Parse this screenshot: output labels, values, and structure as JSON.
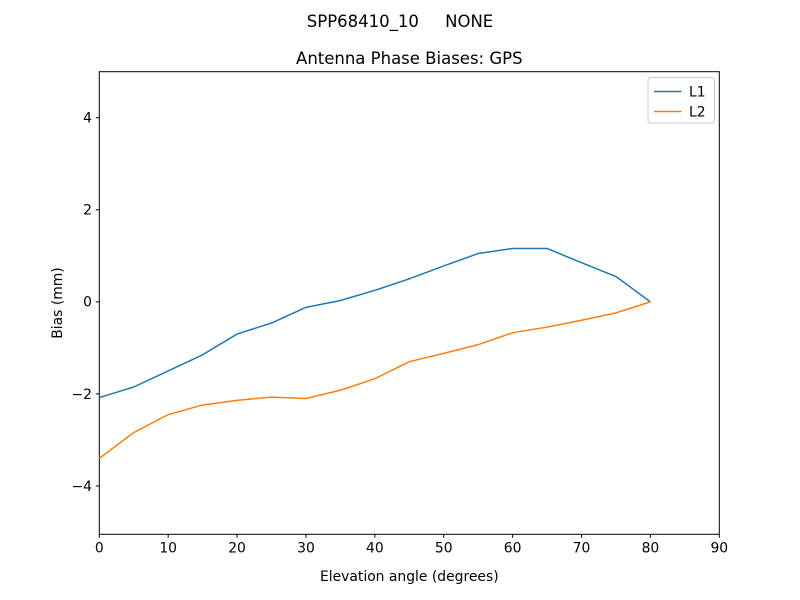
{
  "figure": {
    "background": "#ffffff",
    "text_color": "#000000",
    "spine_color": "#000000"
  },
  "chart_data": {
    "type": "line",
    "suptitle": "SPP68410_10     NONE",
    "title": "Antenna Phase Biases: GPS",
    "xlabel": "Elevation angle (degrees)",
    "ylabel": "Bias (mm)",
    "xlim": [
      0,
      90
    ],
    "ylim": [
      -5.05,
      5.0
    ],
    "xticks": [
      0,
      10,
      20,
      30,
      40,
      50,
      60,
      70,
      80,
      90
    ],
    "yticks": [
      -4,
      -2,
      0,
      2,
      4
    ],
    "grid": false,
    "x": [
      0,
      5,
      10,
      15,
      20,
      25,
      30,
      35,
      40,
      45,
      50,
      55,
      60,
      65,
      70,
      75,
      80
    ],
    "series": [
      {
        "name": "L1",
        "color": "#1f77b4",
        "values": [
          -2.08,
          -1.85,
          -1.5,
          -1.15,
          -0.7,
          -0.46,
          -0.12,
          0.03,
          0.25,
          0.5,
          0.78,
          1.05,
          1.16,
          1.16,
          0.85,
          0.55,
          0.0
        ]
      },
      {
        "name": "L2",
        "color": "#ff7f0e",
        "values": [
          -3.4,
          -2.84,
          -2.45,
          -2.24,
          -2.14,
          -2.07,
          -2.1,
          -1.92,
          -1.67,
          -1.3,
          -1.12,
          -0.93,
          -0.67,
          -0.55,
          -0.4,
          -0.24,
          0.0
        ]
      }
    ],
    "legend": {
      "position": "upper right",
      "entries": [
        "L1",
        "L2"
      ],
      "border_color": "#cccccc",
      "background": "#ffffff"
    }
  }
}
